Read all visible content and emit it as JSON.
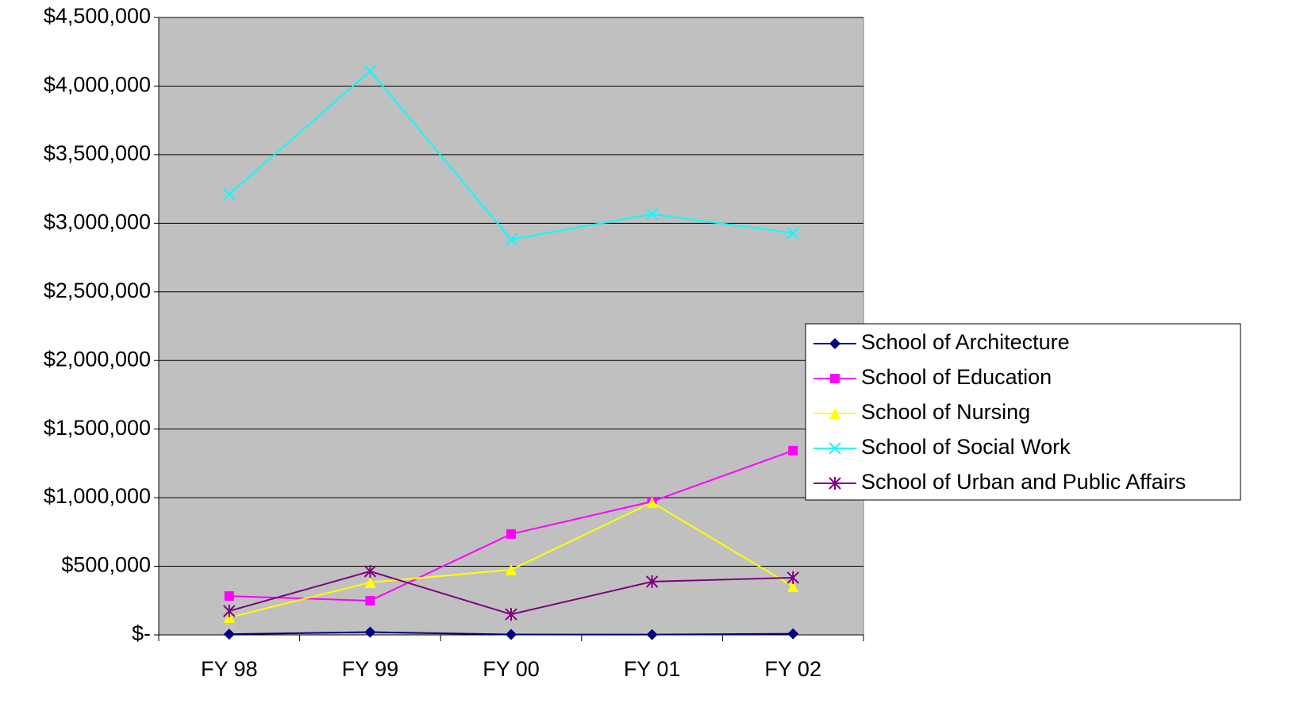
{
  "chart_data": {
    "type": "line",
    "categories": [
      "FY 98",
      "FY 99",
      "FY 00",
      "FY 01",
      "FY 02"
    ],
    "series": [
      {
        "name": "School of Architecture",
        "color": "#000080",
        "marker": "diamond",
        "values": [
          5000,
          20000,
          3000,
          2000,
          8000
        ]
      },
      {
        "name": "School of Education",
        "color": "#ff00ff",
        "marker": "square",
        "values": [
          283000,
          249000,
          735000,
          972000,
          1343000
        ]
      },
      {
        "name": "School of Nursing",
        "color": "#ffff00",
        "marker": "triangle",
        "values": [
          127000,
          382000,
          475000,
          965000,
          353000
        ]
      },
      {
        "name": "School of Social Work",
        "color": "#00ffff",
        "marker": "x",
        "values": [
          3212000,
          4109000,
          2882000,
          3067000,
          2928000
        ]
      },
      {
        "name": "School of Urban and Public Affairs",
        "color": "#800080",
        "marker": "asterisk",
        "values": [
          174000,
          463000,
          150000,
          388000,
          417000
        ]
      }
    ],
    "ylim": [
      0,
      4500000
    ],
    "yticks": [
      {
        "value": 0,
        "label": "$-"
      },
      {
        "value": 500000,
        "label": "$500,000"
      },
      {
        "value": 1000000,
        "label": "$1,000,000"
      },
      {
        "value": 1500000,
        "label": "$1,500,000"
      },
      {
        "value": 2000000,
        "label": "$2,000,000"
      },
      {
        "value": 2500000,
        "label": "$2,500,000"
      },
      {
        "value": 3000000,
        "label": "$3,000,000"
      },
      {
        "value": 3500000,
        "label": "$3,500,000"
      },
      {
        "value": 4000000,
        "label": "$4,000,000"
      },
      {
        "value": 4500000,
        "label": "$4,500,000"
      }
    ],
    "grid": true,
    "plot_background": "#c0c0c0",
    "legend": "right"
  }
}
